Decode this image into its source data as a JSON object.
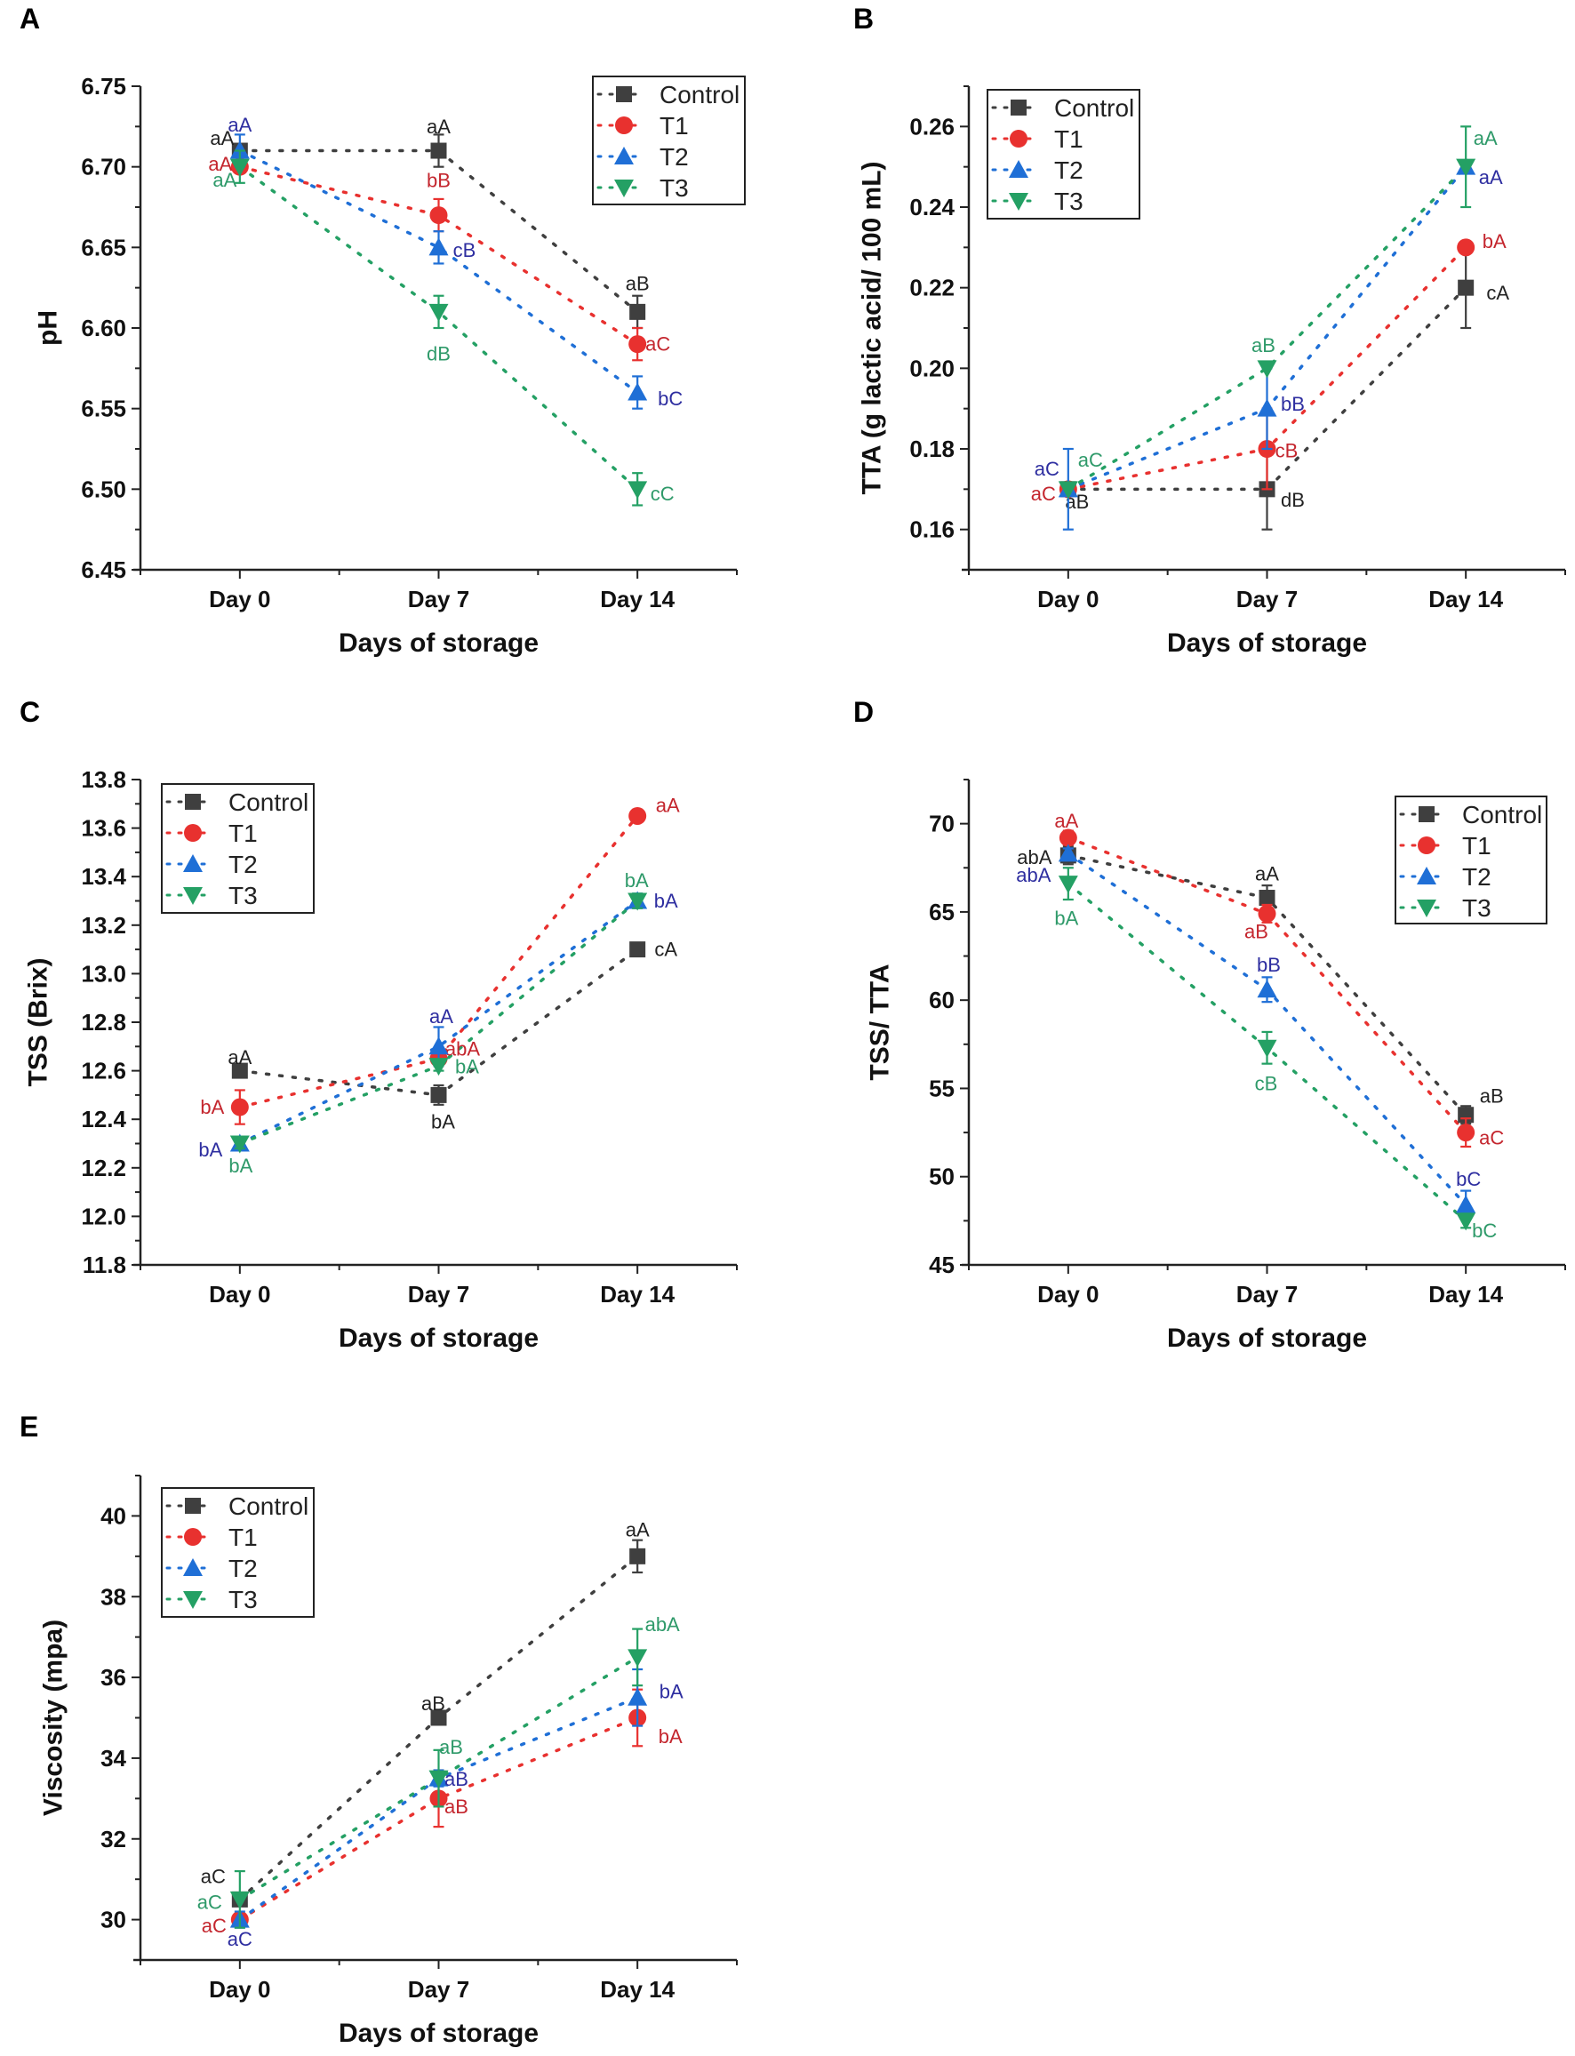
{
  "colors": {
    "Control": "#3f3f3f",
    "T1": "#e8312f",
    "T2": "#1f6fd6",
    "T3": "#24a064"
  },
  "label_colors": {
    "Control": "#222222",
    "T1": "#c4262e",
    "T2": "#2e2ea0",
    "T3": "#2f9a6a"
  },
  "chart_data": [
    {
      "type": "line",
      "panel": "A",
      "xlabel": "Days of storage",
      "ylabel": "pH",
      "categories": [
        "Day 0",
        "Day 7",
        "Day 14"
      ],
      "ylim": [
        6.45,
        6.75
      ],
      "yticks": [
        "6.45",
        "6.50",
        "6.55",
        "6.60",
        "6.65",
        "6.70",
        "6.75"
      ],
      "legend": "top-right",
      "grid": false,
      "series": [
        {
          "name": "Control",
          "marker": "square",
          "values": [
            6.71,
            6.71,
            6.61
          ],
          "errors": [
            0.0,
            0.01,
            0.01
          ],
          "letters": [
            "aA",
            "aA",
            "aB"
          ]
        },
        {
          "name": "T1",
          "marker": "circle",
          "values": [
            6.7,
            6.67,
            6.59
          ],
          "errors": [
            0.0,
            0.01,
            0.01
          ],
          "letters": [
            "aA",
            "bB",
            "aC"
          ]
        },
        {
          "name": "T2",
          "marker": "triangle-up",
          "values": [
            6.71,
            6.65,
            6.56
          ],
          "errors": [
            0.01,
            0.01,
            0.01
          ],
          "letters": [
            "aA",
            "cB",
            "bC"
          ]
        },
        {
          "name": "T3",
          "marker": "triangle-down",
          "values": [
            6.7,
            6.61,
            6.5
          ],
          "errors": [
            0.01,
            0.01,
            0.01
          ],
          "letters": [
            "aA",
            "dB",
            "cC"
          ]
        }
      ]
    },
    {
      "type": "line",
      "panel": "B",
      "xlabel": "Days of storage",
      "ylabel": "TTA (g lactic acid/ 100 mL)",
      "categories": [
        "Day 0",
        "Day 7",
        "Day 14"
      ],
      "ylim": [
        0.15,
        0.27
      ],
      "yticks": [
        "0.16",
        "0.18",
        "0.20",
        "0.22",
        "0.24",
        "0.26"
      ],
      "legend": "top-left",
      "grid": false,
      "series": [
        {
          "name": "Control",
          "marker": "square",
          "values": [
            0.17,
            0.17,
            0.22
          ],
          "errors": [
            0.0,
            0.01,
            0.01
          ],
          "letters": [
            "aB",
            "dB",
            "cA"
          ]
        },
        {
          "name": "T1",
          "marker": "circle",
          "values": [
            0.17,
            0.18,
            0.23
          ],
          "errors": [
            0.0,
            0.01,
            0.0
          ],
          "letters": [
            "aC",
            "cB",
            "bA"
          ]
        },
        {
          "name": "T2",
          "marker": "triangle-up",
          "values": [
            0.17,
            0.19,
            0.25
          ],
          "errors": [
            0.01,
            0.01,
            0.0
          ],
          "letters": [
            "aC",
            "bB",
            "aA"
          ]
        },
        {
          "name": "T3",
          "marker": "triangle-down",
          "values": [
            0.17,
            0.2,
            0.25
          ],
          "errors": [
            0.0,
            0.0,
            0.01
          ],
          "letters": [
            "aC",
            "aB",
            "aA"
          ]
        }
      ]
    },
    {
      "type": "line",
      "panel": "C",
      "xlabel": "Days of storage",
      "ylabel": "TSS (Brix)",
      "categories": [
        "Day 0",
        "Day 7",
        "Day 14"
      ],
      "ylim": [
        11.8,
        13.8
      ],
      "yticks": [
        "11.8",
        "12.0",
        "12.2",
        "12.4",
        "12.6",
        "12.8",
        "13.0",
        "13.2",
        "13.4",
        "13.6",
        "13.8"
      ],
      "legend": "top-left",
      "grid": false,
      "series": [
        {
          "name": "Control",
          "marker": "square",
          "values": [
            12.6,
            12.5,
            13.1
          ],
          "errors": [
            0.0,
            0.04,
            0.0
          ],
          "letters": [
            "aA",
            "bA",
            "cA"
          ]
        },
        {
          "name": "T1",
          "marker": "circle",
          "values": [
            12.45,
            12.65,
            13.65
          ],
          "errors": [
            0.07,
            0.03,
            0.0
          ],
          "letters": [
            "bA",
            "abA",
            "aA"
          ]
        },
        {
          "name": "T2",
          "marker": "triangle-up",
          "values": [
            12.3,
            12.7,
            13.3
          ],
          "errors": [
            0.02,
            0.08,
            0.03
          ],
          "letters": [
            "bA",
            "aA",
            "bA"
          ]
        },
        {
          "name": "T3",
          "marker": "triangle-down",
          "values": [
            12.3,
            12.62,
            13.3
          ],
          "errors": [
            0.02,
            0.02,
            0.03
          ],
          "letters": [
            "bA",
            "bA",
            "bA"
          ]
        }
      ]
    },
    {
      "type": "line",
      "panel": "D",
      "xlabel": "Days of storage",
      "ylabel": "TSS/ TTA",
      "categories": [
        "Day 0",
        "Day 7",
        "Day 14"
      ],
      "ylim": [
        45,
        72.5
      ],
      "yticks": [
        "45",
        "50",
        "55",
        "60",
        "65",
        "70"
      ],
      "legend": "top-right",
      "grid": false,
      "series": [
        {
          "name": "Control",
          "marker": "square",
          "values": [
            68.2,
            65.8,
            53.5
          ],
          "errors": [
            0.5,
            0.7,
            0.5
          ],
          "letters": [
            "abA",
            "aA",
            "aB"
          ]
        },
        {
          "name": "T1",
          "marker": "circle",
          "values": [
            69.2,
            64.9,
            52.5
          ],
          "errors": [
            0.4,
            0.5,
            0.8
          ],
          "letters": [
            "aA",
            "aB",
            "aC"
          ]
        },
        {
          "name": "T2",
          "marker": "triangle-up",
          "values": [
            68.3,
            60.6,
            48.4
          ],
          "errors": [
            0.3,
            0.7,
            0.8
          ],
          "letters": [
            "abA",
            "bB",
            "bC"
          ]
        },
        {
          "name": "T3",
          "marker": "triangle-down",
          "values": [
            66.6,
            57.3,
            47.5
          ],
          "errors": [
            0.9,
            0.9,
            0.4
          ],
          "letters": [
            "bA",
            "cB",
            "bC"
          ]
        }
      ]
    },
    {
      "type": "line",
      "panel": "E",
      "xlabel": "Days of storage",
      "ylabel": "Viscosity (mpa)",
      "categories": [
        "Day 0",
        "Day 7",
        "Day 14"
      ],
      "ylim": [
        29,
        41
      ],
      "yticks": [
        "30",
        "32",
        "34",
        "36",
        "38",
        "40"
      ],
      "legend": "top-left",
      "grid": false,
      "series": [
        {
          "name": "Control",
          "marker": "square",
          "values": [
            30.5,
            35.0,
            39.0
          ],
          "errors": [
            0.0,
            0.0,
            0.4
          ],
          "letters": [
            "aC",
            "aB",
            "aA"
          ]
        },
        {
          "name": "T1",
          "marker": "circle",
          "values": [
            30.0,
            33.0,
            35.0
          ],
          "errors": [
            0.0,
            0.7,
            0.7
          ],
          "letters": [
            "aC",
            "aB",
            "bA"
          ]
        },
        {
          "name": "T2",
          "marker": "triangle-up",
          "values": [
            30.0,
            33.5,
            35.5
          ],
          "errors": [
            0.2,
            0.2,
            0.7
          ],
          "letters": [
            "aC",
            "aB",
            "bA"
          ]
        },
        {
          "name": "T3",
          "marker": "triangle-down",
          "values": [
            30.5,
            33.5,
            36.5
          ],
          "errors": [
            0.7,
            0.7,
            0.7
          ],
          "letters": [
            "aC",
            "aB",
            "abA"
          ]
        }
      ]
    }
  ]
}
